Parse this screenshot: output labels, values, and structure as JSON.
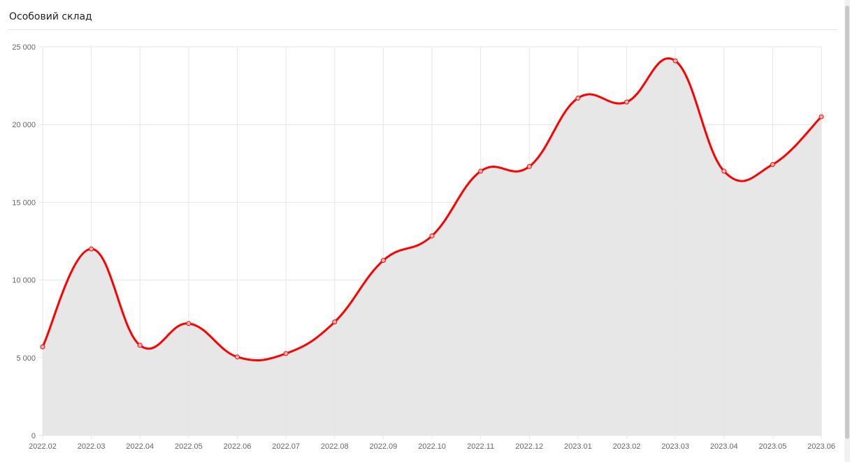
{
  "panel": {
    "title": "Особовий склад"
  },
  "chart_data": {
    "type": "area",
    "title": "",
    "xlabel": "",
    "ylabel": "",
    "categories": [
      "2022.02",
      "2022.03",
      "2022.04",
      "2022.05",
      "2022.06",
      "2022.07",
      "2022.08",
      "2022.09",
      "2022.10",
      "2022.11",
      "2022.12",
      "2023.01",
      "2023.02",
      "2023.03",
      "2023.04",
      "2023.05",
      "2023.06"
    ],
    "series": [
      {
        "values": [
          5700,
          12000,
          5800,
          7200,
          5050,
          5270,
          7300,
          11260,
          12840,
          17000,
          17300,
          21700,
          21450,
          24100,
          17000,
          17430,
          20500
        ]
      }
    ],
    "ylim": [
      0,
      25000
    ],
    "yticks": [
      0,
      5000,
      10000,
      15000,
      20000,
      25000
    ],
    "ytick_labels": [
      "0",
      "5 000",
      "10 000",
      "15 000",
      "20 000",
      "25 000"
    ],
    "grid": true,
    "legend": "none",
    "colors": {
      "line": "#ff0000",
      "fill": "#e4e4e4",
      "grid": "#e6e6e6"
    }
  }
}
